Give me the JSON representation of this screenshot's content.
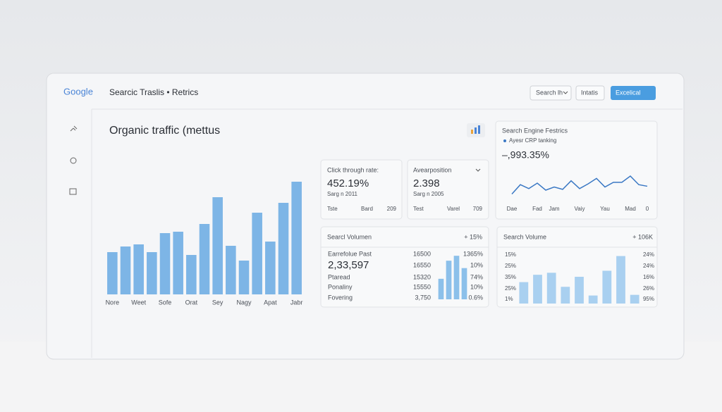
{
  "header": {
    "logo": "Google",
    "title": "Searcic Traslis • Retrics",
    "buttons": [
      "Search lh",
      "Intatis",
      "Excelical"
    ]
  },
  "cards": [
    {
      "label": "Click through rate:",
      "value": "452.19%",
      "sub": "Sarg n 2011",
      "footer": [
        "Tste",
        "Bard",
        "209"
      ]
    },
    {
      "label": "Avearposition",
      "value": "2.398",
      "sub": "Sarg n 2005",
      "footer": [
        "Test",
        "Varel",
        "709"
      ]
    }
  ],
  "chart_data": [
    {
      "type": "bar",
      "title": "Organic traffic (mettus",
      "categories": [
        "Nore",
        null,
        "Weet",
        null,
        "Sofe",
        null,
        "Orat",
        null,
        "Sey",
        null,
        "Nagy",
        null,
        "Apat",
        null,
        "Jabr"
      ],
      "values": [
        60,
        68,
        71,
        60,
        87,
        89,
        56,
        100,
        138,
        69,
        48,
        116,
        75,
        130,
        160
      ],
      "color": "#7db5e6",
      "ylim": [
        0,
        170
      ]
    },
    {
      "type": "line",
      "title": "Search Engine Festrics",
      "annotation": "–,993.35%",
      "categories": [
        "Dae",
        null,
        null,
        "Fad",
        null,
        "Jam",
        null,
        null,
        "Vaiy",
        null,
        null,
        "Yau",
        null,
        null,
        "Mad",
        null,
        "0"
      ],
      "series": [
        {
          "name": "Ayesr CRP tanking",
          "color": "#3a78c4",
          "values": [
            13,
            25,
            20,
            27,
            18,
            22,
            19,
            30,
            20,
            26,
            33,
            22,
            28,
            28,
            36,
            25,
            23
          ]
        }
      ],
      "ylim": [
        0,
        45
      ]
    },
    {
      "type": "bar",
      "title": "Searcl Volumen",
      "annotation": "+ 15%",
      "values": [
        25,
        47,
        53,
        38
      ],
      "color": "#8cc0ea",
      "ylim": [
        0,
        60
      ],
      "rows": [
        [
          "Earrefolue Past",
          "16500",
          "1365%"
        ],
        [
          "2,33,597",
          "16550",
          "10%"
        ],
        [
          "Ptaread",
          "15320",
          "74%"
        ],
        [
          "Ponaliny",
          "15550",
          "10%"
        ],
        [
          "Fovering",
          "3,750",
          "0.6%"
        ]
      ]
    },
    {
      "type": "bar",
      "title": "Search Volume",
      "annotation": "+ 106K",
      "values": [
        32,
        43,
        46,
        25,
        40,
        12,
        49,
        71,
        13
      ],
      "color": "#a9d0f0",
      "ylim": [
        0,
        80
      ],
      "left_labels": [
        "15%",
        "25%",
        "35%",
        "25%",
        "1%"
      ],
      "right_labels": [
        "24%",
        "24%",
        "16%",
        "26%",
        "95%"
      ]
    }
  ]
}
